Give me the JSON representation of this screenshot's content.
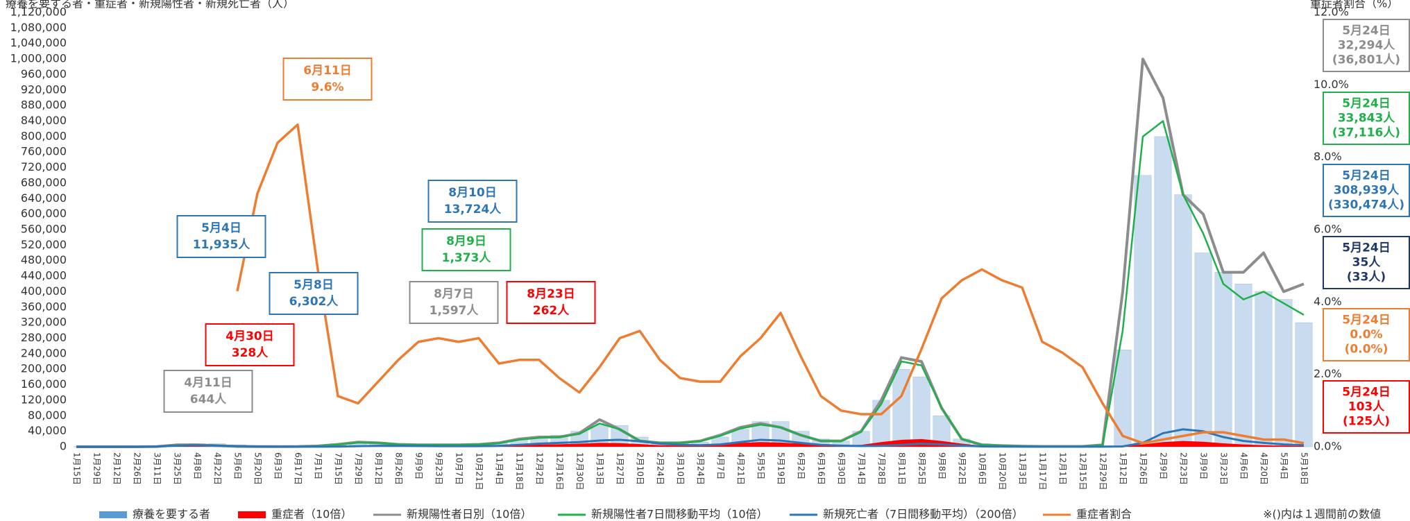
{
  "chart_data": {
    "type": "bar",
    "y_label": "療養を要する者・重症者・新規陽性者・新規死亡者（人）",
    "y2_label": "重症者割合（%）",
    "footnote": "※()内は１週間前の数値",
    "categories": [
      "1月15日",
      "1月29日",
      "2月12日",
      "2月26日",
      "3月11日",
      "3月25日",
      "4月8日",
      "4月22日",
      "5月6日",
      "5月20日",
      "6月3日",
      "6月17日",
      "7月1日",
      "7月15日",
      "7月29日",
      "8月12日",
      "8月26日",
      "9月9日",
      "9月23日",
      "10月7日",
      "10月21日",
      "11月4日",
      "11月18日",
      "12月2日",
      "12月16日",
      "12月30日",
      "1月13日",
      "1月27日",
      "2月10日",
      "2月24日",
      "3月10日",
      "3月24日",
      "4月7日",
      "4月21日",
      "5月5日",
      "5月19日",
      "6月2日",
      "6月16日",
      "6月30日",
      "7月14日",
      "7月28日",
      "8月11日",
      "8月25日",
      "9月8日",
      "9月22日",
      "10月6日",
      "10月20日",
      "11月3日",
      "11月17日",
      "12月1日",
      "12月15日",
      "12月29日",
      "1月12日",
      "1月26日",
      "2月9日",
      "2月23日",
      "3月9日",
      "3月23日",
      "4月6日",
      "4月20日",
      "5月4日",
      "5月18日"
    ],
    "series": [
      {
        "name": "療養を要する者",
        "type": "bar",
        "color": "#5b9bd5",
        "values": [
          0,
          0,
          0,
          0,
          1000,
          3000,
          8000,
          8000,
          5000,
          2000,
          1000,
          1000,
          2000,
          8000,
          13000,
          12000,
          8000,
          6000,
          5000,
          5000,
          6000,
          10000,
          18000,
          22000,
          30000,
          40000,
          60000,
          55000,
          25000,
          10000,
          8000,
          12000,
          25000,
          45000,
          65000,
          65000,
          40000,
          20000,
          15000,
          40000,
          120000,
          200000,
          180000,
          80000,
          20000,
          8000,
          4000,
          2000,
          1000,
          1000,
          1000,
          3000,
          250000,
          700000,
          800000,
          650000,
          500000,
          450000,
          420000,
          400000,
          380000,
          320000
        ]
      },
      {
        "name": "重症者（10倍）",
        "type": "area",
        "color": "#ff0000",
        "values": [
          0,
          0,
          0,
          0,
          0,
          1000,
          3000,
          3000,
          2000,
          500,
          300,
          300,
          500,
          1000,
          2500,
          2500,
          2000,
          1500,
          1500,
          1500,
          1500,
          2500,
          4000,
          5500,
          6500,
          8000,
          10000,
          9500,
          7000,
          4000,
          3000,
          3500,
          6000,
          10000,
          12000,
          11000,
          8000,
          5000,
          3000,
          5000,
          12000,
          18000,
          20000,
          15000,
          8000,
          3000,
          1500,
          800,
          500,
          400,
          400,
          500,
          1500,
          6000,
          12000,
          15000,
          13000,
          9000,
          6000,
          4000,
          3000,
          1500
        ]
      },
      {
        "name": "新規陽性者日別（10倍）",
        "type": "line",
        "color": "#8c8c8c",
        "width": 4,
        "values": [
          0,
          0,
          0,
          0,
          500,
          5000,
          5000,
          3000,
          1000,
          500,
          500,
          600,
          2000,
          6000,
          12000,
          10000,
          6000,
          5000,
          5000,
          5000,
          6000,
          10000,
          20000,
          25000,
          25000,
          35000,
          70000,
          45000,
          15000,
          10000,
          10000,
          15000,
          30000,
          50000,
          60000,
          50000,
          30000,
          15000,
          15000,
          40000,
          120000,
          230000,
          220000,
          100000,
          20000,
          5000,
          3000,
          1500,
          1000,
          1000,
          1000,
          5000,
          400000,
          1000000,
          900000,
          650000,
          600000,
          450000,
          450000,
          500000,
          400000,
          420000
        ]
      },
      {
        "name": "新規陽性者7日間移動平均（10倍）",
        "type": "line",
        "color": "#1fb04a",
        "width": 2.5,
        "values": [
          0,
          0,
          0,
          0,
          400,
          4000,
          4500,
          3000,
          1000,
          500,
          500,
          600,
          1800,
          5500,
          11000,
          10000,
          6000,
          5000,
          5000,
          5000,
          6000,
          9000,
          18000,
          23000,
          25000,
          33000,
          60000,
          45000,
          16000,
          10000,
          10000,
          14000,
          28000,
          47000,
          57000,
          50000,
          30000,
          15000,
          14000,
          38000,
          110000,
          220000,
          210000,
          100000,
          20000,
          5000,
          3000,
          1500,
          1000,
          1000,
          1000,
          4000,
          300000,
          800000,
          840000,
          650000,
          550000,
          420000,
          380000,
          400000,
          370000,
          340000
        ]
      },
      {
        "name": "新規死亡者（7日間移動平均）（200倍）",
        "type": "line",
        "color": "#2e75b6",
        "width": 3,
        "values": [
          0,
          0,
          0,
          0,
          1000,
          3000,
          4000,
          3000,
          1500,
          800,
          500,
          300,
          300,
          400,
          1500,
          2500,
          2500,
          2000,
          1500,
          1500,
          1500,
          2500,
          5000,
          8000,
          10000,
          12000,
          16000,
          18000,
          14000,
          8000,
          5000,
          4000,
          6000,
          12000,
          18000,
          16000,
          10000,
          5000,
          3000,
          2000,
          2500,
          5000,
          8000,
          6000,
          3000,
          1000,
          500,
          300,
          200,
          200,
          200,
          300,
          1000,
          10000,
          35000,
          45000,
          40000,
          25000,
          15000,
          10000,
          6000,
          4000
        ]
      },
      {
        "name": "重症者割合",
        "type": "line",
        "axis": "y2",
        "color": "#ed7d31",
        "width": 3.5,
        "values": [
          null,
          null,
          null,
          null,
          null,
          null,
          null,
          null,
          4.3,
          7.0,
          8.4,
          8.9,
          4.9,
          1.4,
          1.2,
          1.8,
          2.4,
          2.9,
          3.0,
          2.9,
          3.0,
          2.3,
          2.4,
          2.4,
          1.9,
          1.5,
          2.2,
          3.0,
          3.2,
          2.4,
          1.9,
          1.8,
          1.8,
          2.5,
          3.0,
          3.7,
          2.5,
          1.4,
          1.0,
          0.9,
          0.9,
          1.4,
          2.7,
          4.1,
          4.6,
          4.9,
          4.6,
          4.4,
          2.9,
          2.6,
          2.2,
          1.2,
          0.3,
          0.1,
          0.2,
          0.3,
          0.4,
          0.4,
          0.3,
          0.2,
          0.2,
          0.1
        ]
      }
    ],
    "ylim": [
      0,
      1120000
    ],
    "yticks": [
      0,
      {
        "value": 40000,
        "label": "40,000"
      },
      {
        "value": 80000,
        "label": "80,000"
      },
      {
        "value": 120000,
        "label": "120,000"
      },
      {
        "value": 160000,
        "label": "160,000"
      },
      {
        "value": 200000,
        "label": "200,000"
      },
      {
        "value": 240000,
        "label": "240,000"
      },
      {
        "value": 280000,
        "label": "280,000"
      },
      {
        "value": 320000,
        "label": "320,000"
      },
      {
        "value": 360000,
        "label": "360,000"
      },
      {
        "value": 400000,
        "label": "400,000"
      },
      {
        "value": 440000,
        "label": "440,000"
      },
      {
        "value": 480000,
        "label": "480,000"
      },
      {
        "value": 520000,
        "label": "520,000"
      },
      {
        "value": 560000,
        "label": "560,000"
      },
      {
        "value": 600000,
        "label": "600,000"
      },
      {
        "value": 640000,
        "label": "640,000"
      },
      {
        "value": 680000,
        "label": "680,000"
      },
      {
        "value": 720000,
        "label": "720,000"
      },
      {
        "value": 760000,
        "label": "760,000"
      },
      {
        "value": 800000,
        "label": "800,000"
      },
      {
        "value": 840000,
        "label": "840,000"
      },
      {
        "value": 880000,
        "label": "880,000"
      },
      {
        "value": 920000,
        "label": "920,000"
      },
      {
        "value": 960000,
        "label": "960,000"
      },
      {
        "value": 1000000,
        "label": "1,000,000"
      },
      {
        "value": 1040000,
        "label": "1,040,000"
      },
      {
        "value": 1080000,
        "label": "1,080,000"
      },
      {
        "value": 1120000,
        "label": "1,120,000"
      }
    ],
    "y2lim": [
      0,
      12
    ],
    "y2ticks": [
      {
        "value": 0,
        "label": "0.0%"
      },
      {
        "value": 2,
        "label": "2.0%"
      },
      {
        "value": 4,
        "label": "4.0%"
      },
      {
        "value": 6,
        "label": "6.0%"
      },
      {
        "value": 8,
        "label": "8.0%"
      },
      {
        "value": 10,
        "label": "10.0%"
      },
      {
        "value": 12,
        "label": "12.0%"
      }
    ],
    "grid": false,
    "annotations": [
      {
        "lines": [
          "6月11日",
          "9.6%"
        ],
        "color": "#ed7d31"
      },
      {
        "lines": [
          "5月4日",
          "11,935人"
        ],
        "color": "#2e75b6"
      },
      {
        "lines": [
          "5月8日",
          "6,302人"
        ],
        "color": "#2e75b6"
      },
      {
        "lines": [
          "4月30日",
          "328人"
        ],
        "color": "#ff0000"
      },
      {
        "lines": [
          "4月11日",
          "644人"
        ],
        "color": "#8c8c8c"
      },
      {
        "lines": [
          "8月10日",
          "13,724人"
        ],
        "color": "#2e75b6"
      },
      {
        "lines": [
          "8月9日",
          "1,373人"
        ],
        "color": "#1fb04a"
      },
      {
        "lines": [
          "8月7日",
          "1,597人"
        ],
        "color": "#8c8c8c"
      },
      {
        "lines": [
          "8月23日",
          "262人"
        ],
        "color": "#ff0000"
      }
    ],
    "latest": [
      {
        "lines": [
          "5月24日",
          "32,294人",
          "(36,801人)"
        ],
        "color": "#8c8c8c"
      },
      {
        "lines": [
          "5月24日",
          "33,843人",
          "(37,116人)"
        ],
        "color": "#1fb04a"
      },
      {
        "lines": [
          "5月24日",
          "308,939人",
          "(330,474人)"
        ],
        "color": "#2e75b6"
      },
      {
        "lines": [
          "5月24日",
          "35人",
          "(33人)"
        ],
        "color": "#1f3864"
      },
      {
        "lines": [
          "5月24日",
          "0.0%",
          "(0.0%)"
        ],
        "color": "#ed7d31"
      },
      {
        "lines": [
          "5月24日",
          "103人",
          "(125人)"
        ],
        "color": "#ff0000"
      }
    ]
  }
}
